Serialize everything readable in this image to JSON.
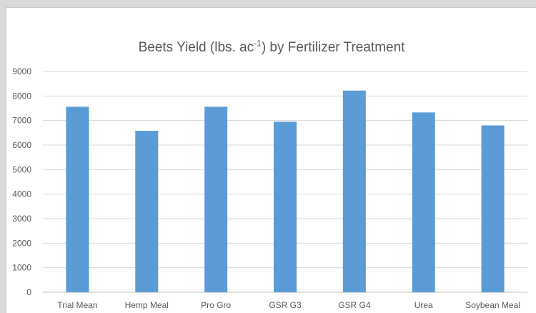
{
  "chart_data": {
    "type": "bar",
    "title_main": "Beets Yield (lbs. ac",
    "title_sup": "-1",
    "title_end": ") by Fertilizer Treatment",
    "categories": [
      "Trial Mean",
      "Hemp Meal",
      "Pro Gro",
      "GSR G3",
      "GSR G4",
      "Urea",
      "Soybean Meal"
    ],
    "values": [
      7560,
      6580,
      7560,
      6950,
      8220,
      7330,
      6800
    ],
    "yticks": [
      "0",
      "1000",
      "2000",
      "3000",
      "4000",
      "5000",
      "6000",
      "7000",
      "8000",
      "9000"
    ],
    "ylim": [
      0,
      9000
    ],
    "xlabel": "",
    "ylabel": "",
    "grid": true,
    "bar_color": "#5b9bd5",
    "grid_color": "#d9d9d9"
  }
}
